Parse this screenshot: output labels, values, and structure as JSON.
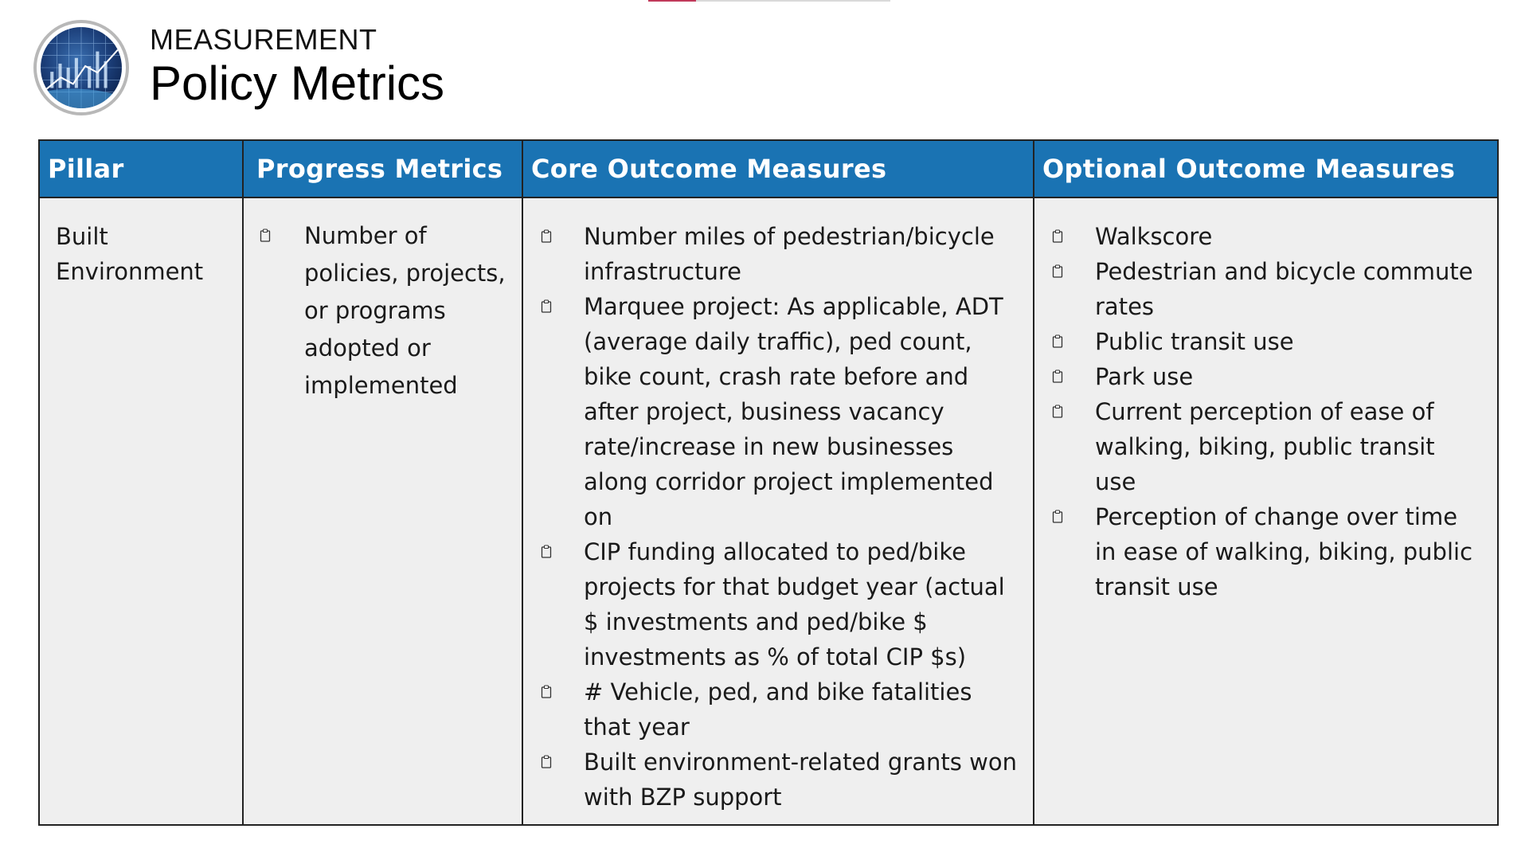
{
  "header": {
    "eyebrow": "MEASUREMENT",
    "title": "Policy Metrics",
    "logo_icon": "city-data-globe-icon"
  },
  "colors": {
    "header_blue": "#1a73b3",
    "body_gray": "#efefef",
    "border": "#222222",
    "accent_pink": "#c0395a"
  },
  "table": {
    "columns": [
      "Pillar",
      "Progress Metrics",
      "Core Outcome Measures",
      "Optional Outcome Measures"
    ],
    "row": {
      "pillar": "Built Environment",
      "progress": [
        "Number of policies, projects, or programs adopted or implemented"
      ],
      "core": [
        "Number miles of pedestrian/bicycle infrastructure",
        "Marquee project: As applicable, ADT (average daily traffic), ped count, bike count, crash rate before and after project, business vacancy rate/increase in new businesses along corridor project implemented on",
        "CIP funding allocated to ped/bike projects for that budget year (actual $ investments and ped/bike $ investments as % of total CIP $s)",
        "# Vehicle, ped, and bike fatalities that year",
        "Built environment-related grants won with BZP support"
      ],
      "optional": [
        "Walkscore",
        "Pedestrian and bicycle commute rates",
        "Public transit use",
        "Park use",
        "Current perception of ease of walking, biking, public transit use",
        "Perception of change over time in ease of walking, biking, public transit use"
      ]
    },
    "bullet_icon": "clipboard-icon"
  }
}
